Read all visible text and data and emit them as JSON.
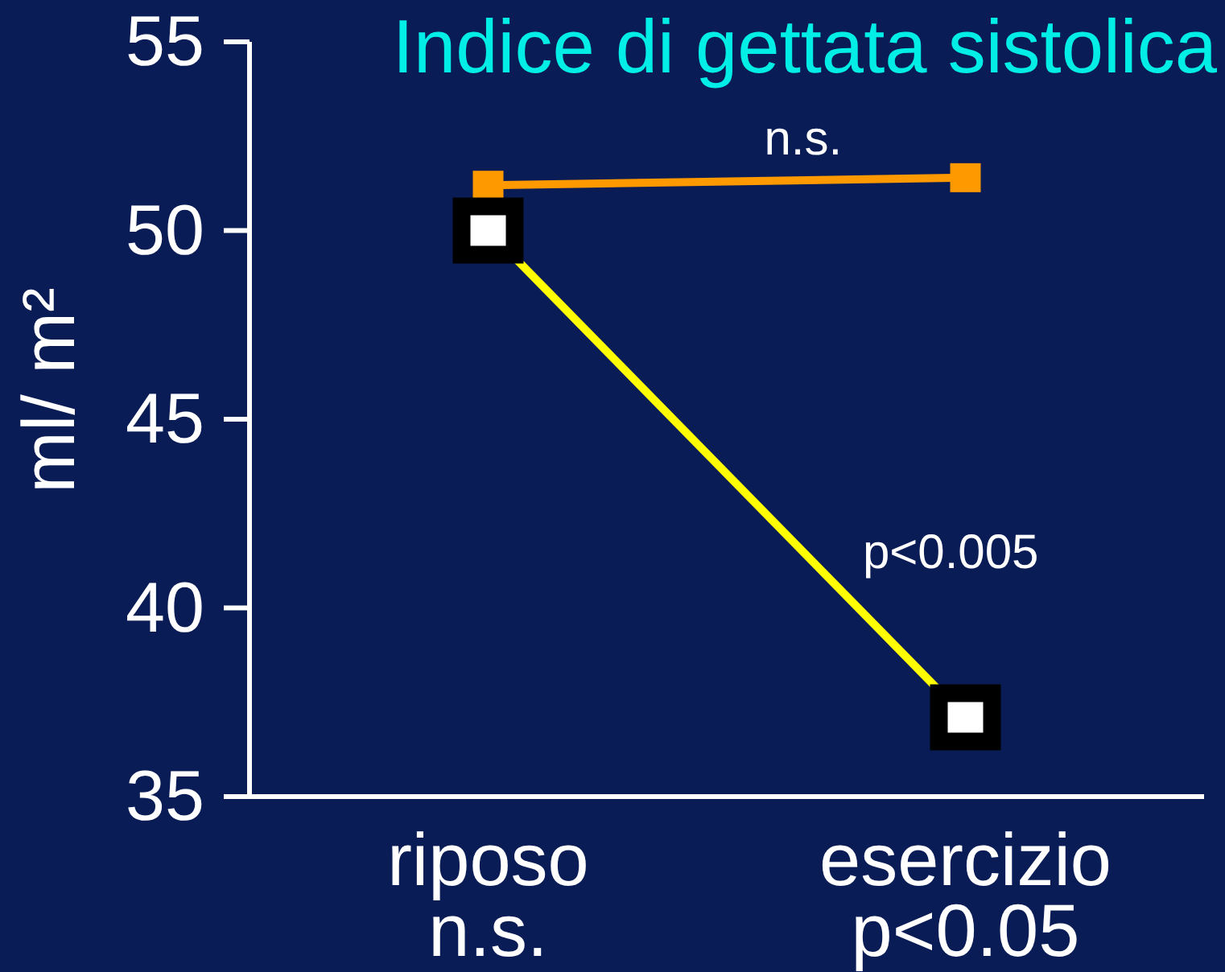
{
  "chart_data": {
    "type": "line",
    "title": "Indice di gettata sistolica",
    "ylabel": "ml/ m²",
    "categories": [
      "riposo\nn.s.",
      "esercizio\np<0.05"
    ],
    "series": [
      {
        "color": "#ff9900",
        "values": [
          51.2,
          51.4
        ]
      },
      {
        "color": "#ffff00",
        "values": [
          50,
          37.1
        ]
      }
    ],
    "ylim": [
      35,
      55
    ],
    "yticks": [
      35,
      40,
      45,
      50,
      55
    ],
    "marker": "square",
    "annotations": [
      "n.s.",
      "p<0.005"
    ]
  }
}
